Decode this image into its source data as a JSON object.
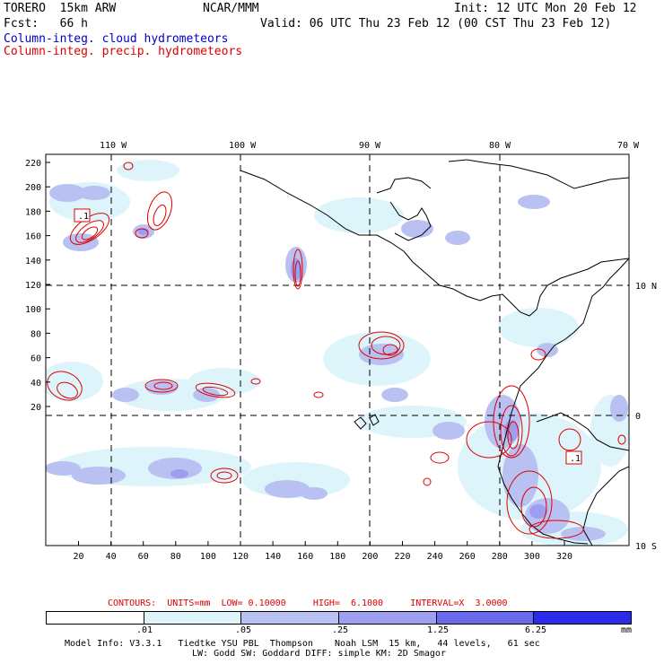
{
  "header": {
    "model": "TORERO  15km ARW",
    "org": "NCAR/MMM",
    "init": "Init: 12 UTC Mon 20 Feb 12",
    "fcst": "Fcst:   66 h",
    "valid": "Valid: 06 UTC Thu 23 Feb 12 (00 CST Thu 23 Feb 12)"
  },
  "fields": {
    "cloud": "Column-integ. cloud hydrometeors",
    "precip": "Column-integ. precip. hydrometeors",
    "cloud_color": "#0000cc",
    "precip_color": "#dd0000"
  },
  "map": {
    "lon_labels": [
      "110 W",
      "100 W",
      "90 W",
      "80 W",
      "70 W"
    ],
    "lat_labels": [
      "10 N",
      "0",
      "10 S"
    ],
    "y_ticks": [
      "220",
      "200",
      "180",
      "160",
      "140",
      "120",
      "100",
      "80",
      "60",
      "40",
      "20"
    ],
    "x_ticks": [
      "20",
      "40",
      "60",
      "80",
      "100",
      "120",
      "140",
      "160",
      "180",
      "200",
      "220",
      "240",
      "260",
      "280",
      "300",
      "320"
    ],
    "min_markers": [
      ".1",
      ".1"
    ]
  },
  "contours": {
    "label": "CONTOURS:",
    "units": "UNITS=mm",
    "low": "LOW= 0.10000",
    "high": "HIGH=  6.1000",
    "interval": "INTERVAL=X  3.0000"
  },
  "colorbar": {
    "levels": [
      ".01",
      ".05",
      ".25",
      "1.25",
      "6.25"
    ],
    "unit": "mm",
    "colors": [
      "#ffffff",
      "#ddf4fb",
      "#b9c1f2",
      "#9d9ef0",
      "#6a6bec",
      "#2b2bea"
    ]
  },
  "model_info": {
    "line1": "Model Info: V3.3.1   Tiedtke YSU PBL  Thompson    Noah LSM  15 km,   44 levels,   61 sec",
    "line2": "LW: Godd SW: Goddard DIFF: simple KM: 2D Smagor"
  }
}
